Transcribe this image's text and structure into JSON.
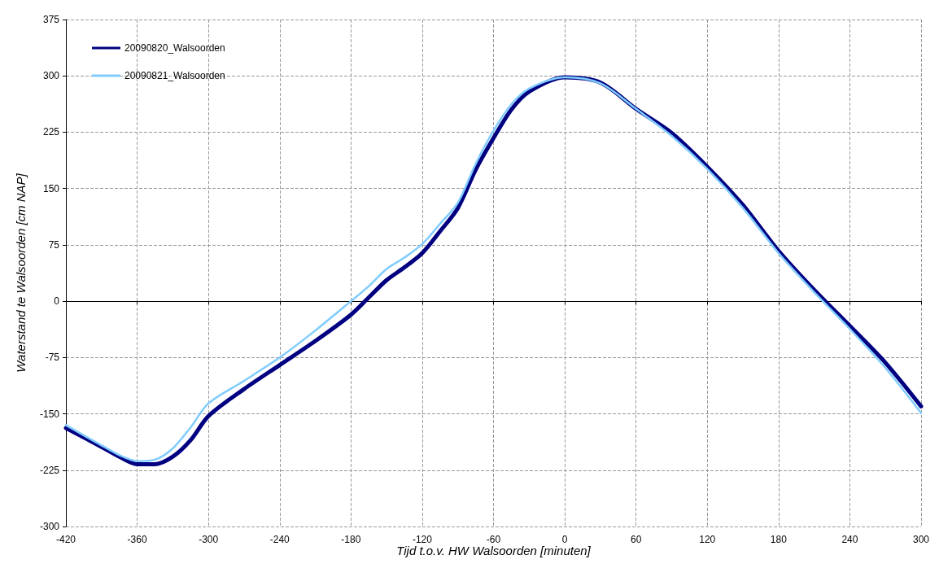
{
  "chart_data": {
    "type": "line",
    "xlabel": "Tijd t.o.v. HW Walsoorden [minuten]",
    "ylabel": "Waterstand te Walsoorden [cm NAP]",
    "x": [
      -420,
      -390,
      -375,
      -360,
      -345,
      -330,
      -315,
      -300,
      -270,
      -240,
      -210,
      -180,
      -165,
      -150,
      -135,
      -120,
      -105,
      -90,
      -75,
      -60,
      -45,
      -30,
      0,
      30,
      60,
      90,
      120,
      150,
      180,
      210,
      240,
      270,
      300
    ],
    "series": [
      {
        "name": "20090820_Walsoorden",
        "color": "#000080",
        "values": [
          -169,
          -194,
          -207,
          -217,
          -217,
          -207,
          -185,
          -153,
          -117,
          -85,
          -53,
          -18,
          5,
          28,
          45,
          64,
          93,
          124,
          175,
          217,
          255,
          279,
          298,
          291,
          256,
          224,
          179,
          128,
          67,
          15,
          -33,
          -82,
          -140
        ]
      },
      {
        "name": "20090821_Walsoorden",
        "color": "#80ccff",
        "values": [
          -165,
          -192,
          -205,
          -213,
          -211,
          -196,
          -168,
          -136,
          -106,
          -75,
          -39,
          0,
          20,
          43,
          58,
          76,
          103,
          131,
          183,
          227,
          262,
          283,
          298,
          290,
          256,
          220,
          176,
          124,
          64,
          12,
          -37,
          -89,
          -149
        ]
      }
    ],
    "xlim": [
      -420,
      300
    ],
    "xticks": [
      -420,
      -360,
      -300,
      -240,
      -180,
      -120,
      -60,
      0,
      60,
      120,
      180,
      240,
      300
    ],
    "ylim": [
      -300,
      375
    ],
    "yticks": [
      -300,
      -225,
      -150,
      -75,
      0,
      75,
      150,
      225,
      300,
      375
    ],
    "grid": true,
    "legend": "top left",
    "marker": "none",
    "line_style": "solid"
  }
}
